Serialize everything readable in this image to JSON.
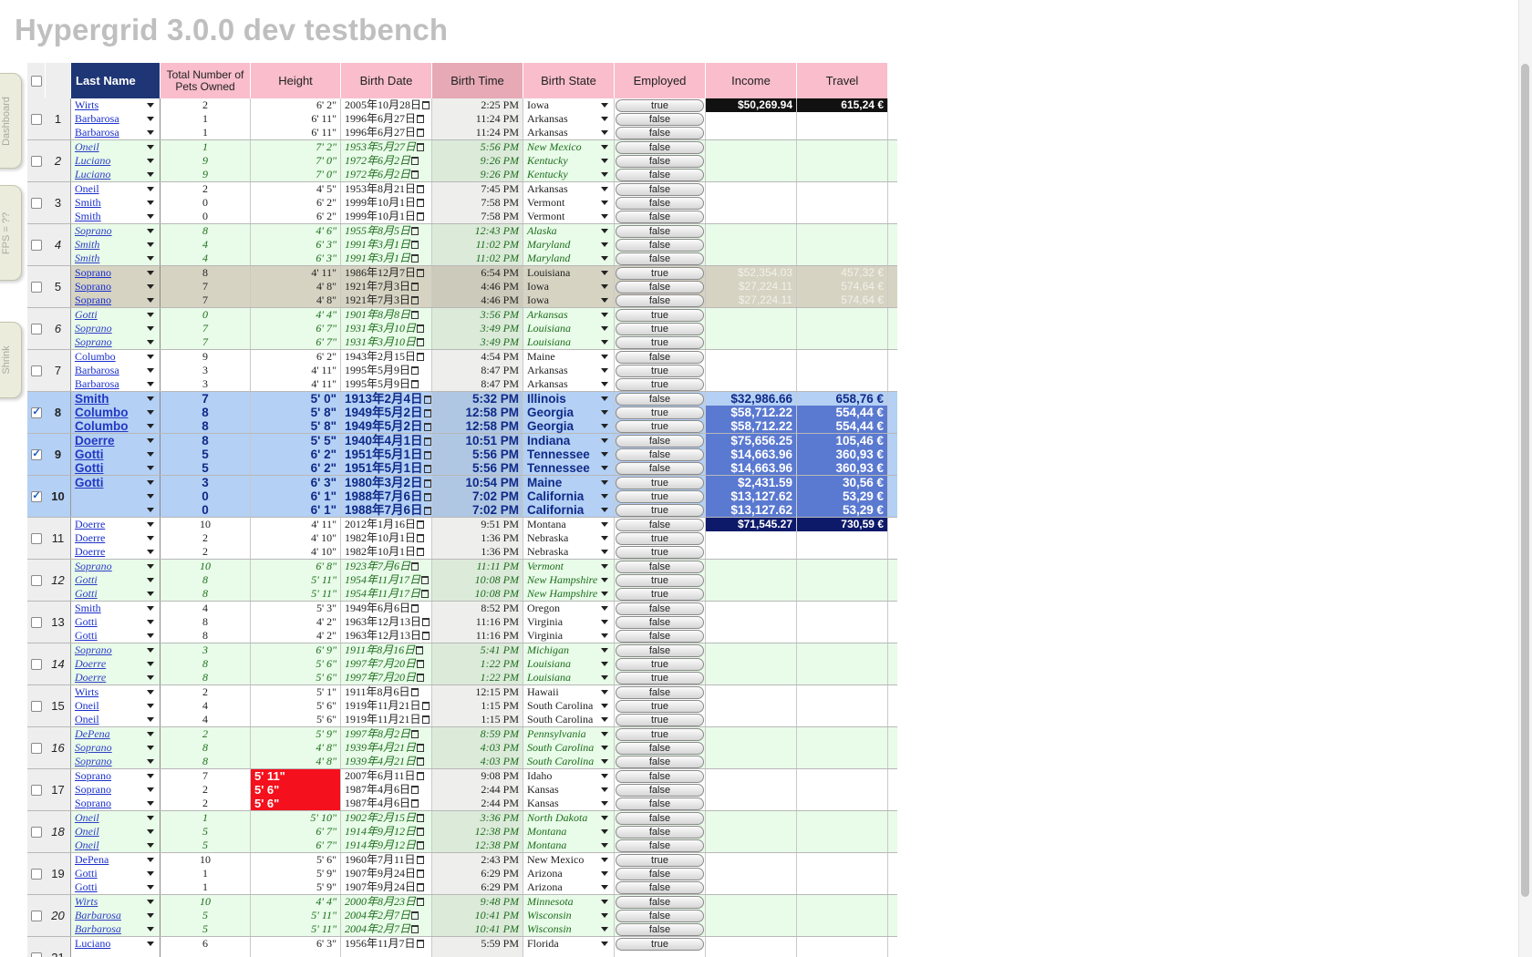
{
  "page_title": "Hypergrid 3.0.0 dev testbench",
  "side_tabs": {
    "dashboard": "Dashboard",
    "fps": "FPS = ??",
    "shrink": "Shrink"
  },
  "columns": [
    "Last Name",
    "Total Number of Pets Owned",
    "Height",
    "Birth Date",
    "Birth Time",
    "Birth State",
    "Employed",
    "Income",
    "Travel"
  ],
  "groups": [
    {
      "num": "",
      "checked": false,
      "style": "odd",
      "rows": [
        {
          "last": "Wirts",
          "pets": "2",
          "height": "6' 2\"",
          "bdate": "2005年10月28日",
          "btime": "2:25 PM",
          "state": "Iowa",
          "emp": "true",
          "income": "$50,269.94",
          "travel": "615,24 €"
        },
        {
          "last": "Barbarosa",
          "pets": "1",
          "height": "6' 11\"",
          "bdate": "1996年6月27日",
          "btime": "11:24 PM",
          "state": "Arkansas",
          "emp": "false",
          "income": "",
          "travel": ""
        },
        {
          "last": "Barbarosa",
          "pets": "1",
          "height": "6' 11\"",
          "bdate": "1996年6月27日",
          "btime": "11:24 PM",
          "state": "Arkansas",
          "emp": "false",
          "income": "",
          "travel": ""
        }
      ]
    },
    {
      "num": "1",
      "checked": false,
      "style": "odd",
      "rows": []
    },
    {
      "num": "2",
      "checked": false,
      "style": "even",
      "rows": [
        {
          "last": "Oneil",
          "pets": "1",
          "height": "7' 2\"",
          "bdate": "1953年5月27日",
          "btime": "5:56 PM",
          "state": "New Mexico",
          "emp": "false",
          "income": "",
          "travel": ""
        },
        {
          "last": "Luciano",
          "pets": "9",
          "height": "7' 0\"",
          "bdate": "1972年6月2日",
          "btime": "9:26 PM",
          "state": "Kentucky",
          "emp": "false",
          "income": "",
          "travel": ""
        },
        {
          "last": "Luciano",
          "pets": "9",
          "height": "7' 0\"",
          "bdate": "1972年6月2日",
          "btime": "9:26 PM",
          "state": "Kentucky",
          "emp": "false",
          "income": "",
          "travel": ""
        }
      ]
    },
    {
      "num": "3",
      "checked": false,
      "style": "odd",
      "rows": [
        {
          "last": "Oneil",
          "pets": "2",
          "height": "4' 5\"",
          "bdate": "1953年8月21日",
          "btime": "7:45 PM",
          "state": "Arkansas",
          "emp": "false",
          "income": "",
          "travel": ""
        },
        {
          "last": "Smith",
          "pets": "0",
          "height": "6' 2\"",
          "bdate": "1999年10月1日",
          "btime": "7:58 PM",
          "state": "Vermont",
          "emp": "false",
          "income": "",
          "travel": ""
        },
        {
          "last": "Smith",
          "pets": "0",
          "height": "6' 2\"",
          "bdate": "1999年10月1日",
          "btime": "7:58 PM",
          "state": "Vermont",
          "emp": "false",
          "income": "",
          "travel": ""
        }
      ]
    },
    {
      "num": "4",
      "checked": false,
      "style": "even",
      "rows": [
        {
          "last": "Soprano",
          "pets": "8",
          "height": "4' 6\"",
          "bdate": "1955年8月5日",
          "btime": "12:43 PM",
          "state": "Alaska",
          "emp": "false",
          "income": "",
          "travel": ""
        },
        {
          "last": "Smith",
          "pets": "4",
          "height": "6' 3\"",
          "bdate": "1991年3月1日",
          "btime": "11:02 PM",
          "state": "Maryland",
          "emp": "false",
          "income": "",
          "travel": ""
        },
        {
          "last": "Smith",
          "pets": "4",
          "height": "6' 3\"",
          "bdate": "1991年3月1日",
          "btime": "11:02 PM",
          "state": "Maryland",
          "emp": "false",
          "income": "",
          "travel": ""
        }
      ]
    },
    {
      "num": "5",
      "checked": false,
      "style": "hover",
      "rows": [
        {
          "last": "Soprano",
          "pets": "8",
          "height": "4' 11\"",
          "bdate": "1986年12月7日",
          "btime": "6:54 PM",
          "state": "Louisiana",
          "emp": "true",
          "income": "$52,354.03",
          "travel": "457,32 €"
        },
        {
          "last": "Soprano",
          "pets": "7",
          "height": "4' 8\"",
          "bdate": "1921年7月3日",
          "btime": "4:46 PM",
          "state": "Iowa",
          "emp": "false",
          "income": "$27,224.11",
          "travel": "574,64 €"
        },
        {
          "last": "Soprano",
          "pets": "7",
          "height": "4' 8\"",
          "bdate": "1921年7月3日",
          "btime": "4:46 PM",
          "state": "Iowa",
          "emp": "false",
          "income": "$27,224.11",
          "travel": "574,64 €"
        }
      ]
    },
    {
      "num": "6",
      "checked": false,
      "style": "even",
      "rows": [
        {
          "last": "Gotti",
          "pets": "0",
          "height": "4' 4\"",
          "bdate": "1901年8月8日",
          "btime": "3:56 PM",
          "state": "Arkansas",
          "emp": "true",
          "income": "",
          "travel": ""
        },
        {
          "last": "Soprano",
          "pets": "7",
          "height": "6' 7\"",
          "bdate": "1931年3月10日",
          "btime": "3:49 PM",
          "state": "Louisiana",
          "emp": "true",
          "income": "",
          "travel": ""
        },
        {
          "last": "Soprano",
          "pets": "7",
          "height": "6' 7\"",
          "bdate": "1931年3月10日",
          "btime": "3:49 PM",
          "state": "Louisiana",
          "emp": "true",
          "income": "",
          "travel": ""
        }
      ]
    },
    {
      "num": "7",
      "checked": false,
      "style": "odd",
      "rows": [
        {
          "last": "Columbo",
          "pets": "9",
          "height": "6' 2\"",
          "bdate": "1943年2月15日",
          "btime": "4:54 PM",
          "state": "Maine",
          "emp": "false",
          "income": "",
          "travel": ""
        },
        {
          "last": "Barbarosa",
          "pets": "3",
          "height": "4' 11\"",
          "bdate": "1995年5月9日",
          "btime": "8:47 PM",
          "state": "Arkansas",
          "emp": "true",
          "income": "",
          "travel": ""
        },
        {
          "last": "Barbarosa",
          "pets": "3",
          "height": "4' 11\"",
          "bdate": "1995年5月9日",
          "btime": "8:47 PM",
          "state": "Arkansas",
          "emp": "true",
          "income": "",
          "travel": ""
        }
      ]
    },
    {
      "num": "8",
      "checked": true,
      "style": "sel",
      "rows": [
        {
          "last": "Smith",
          "pets": "7",
          "height": "5' 0\"",
          "bdate": "1913年2月4日",
          "btime": "5:32 PM",
          "state": "Illinois",
          "emp": "false",
          "income": "$32,986.66",
          "travel": "658,76 €"
        },
        {
          "last": "Columbo",
          "pets": "8",
          "height": "5' 8\"",
          "bdate": "1949年5月2日",
          "btime": "12:58 PM",
          "state": "Georgia",
          "emp": "true",
          "income": "$58,712.22",
          "travel": "554,44 €"
        },
        {
          "last": "Columbo",
          "pets": "8",
          "height": "5' 8\"",
          "bdate": "1949年5月2日",
          "btime": "12:58 PM",
          "state": "Georgia",
          "emp": "true",
          "income": "$58,712.22",
          "travel": "554,44 €"
        }
      ]
    },
    {
      "num": "9",
      "checked": true,
      "style": "sel",
      "rows": [
        {
          "last": "Doerre",
          "pets": "8",
          "height": "5' 5\"",
          "bdate": "1940年4月1日",
          "btime": "10:51 PM",
          "state": "Indiana",
          "emp": "false",
          "income": "$75,656.25",
          "travel": "105,46 €"
        },
        {
          "last": "Gotti",
          "pets": "5",
          "height": "6' 2\"",
          "bdate": "1951年5月1日",
          "btime": "5:56 PM",
          "state": "Tennessee",
          "emp": "false",
          "income": "$14,663.96",
          "travel": "360,93 €"
        },
        {
          "last": "Gotti",
          "pets": "5",
          "height": "6' 2\"",
          "bdate": "1951年5月1日",
          "btime": "5:56 PM",
          "state": "Tennessee",
          "emp": "false",
          "income": "$14,663.96",
          "travel": "360,93 €"
        }
      ]
    },
    {
      "num": "10",
      "checked": true,
      "style": "sel",
      "rows": [
        {
          "last": "Gotti",
          "pets": "3",
          "height": "6' 3\"",
          "bdate": "1980年3月2日",
          "btime": "10:54 PM",
          "state": "Maine",
          "emp": "true",
          "income": "$2,431.59",
          "travel": "30,56 €"
        },
        {
          "last": "",
          "pets": "0",
          "height": "6' 1\"",
          "bdate": "1988年7月6日",
          "btime": "7:02 PM",
          "state": "California",
          "emp": "true",
          "income": "$13,127.62",
          "travel": "53,29 €"
        },
        {
          "last": "",
          "pets": "0",
          "height": "6' 1\"",
          "bdate": "1988年7月6日",
          "btime": "7:02 PM",
          "state": "California",
          "emp": "true",
          "income": "$13,127.62",
          "travel": "53,29 €"
        }
      ]
    },
    {
      "num": "11",
      "checked": false,
      "style": "odd",
      "rows": [
        {
          "last": "Doerre",
          "pets": "10",
          "height": "4' 11\"",
          "bdate": "2012年1月16日",
          "btime": "9:51 PM",
          "state": "Montana",
          "emp": "false",
          "income": "$71,545.27",
          "travel": "730,59 €"
        },
        {
          "last": "Doerre",
          "pets": "2",
          "height": "4' 10\"",
          "bdate": "1982年10月1日",
          "btime": "1:36 PM",
          "state": "Nebraska",
          "emp": "true",
          "income": "",
          "travel": ""
        },
        {
          "last": "Doerre",
          "pets": "2",
          "height": "4' 10\"",
          "bdate": "1982年10月1日",
          "btime": "1:36 PM",
          "state": "Nebraska",
          "emp": "true",
          "income": "",
          "travel": ""
        }
      ]
    },
    {
      "num": "12",
      "checked": false,
      "style": "even",
      "rows": [
        {
          "last": "Soprano",
          "pets": "10",
          "height": "6' 8\"",
          "bdate": "1923年7月6日",
          "btime": "11:11 PM",
          "state": "Vermont",
          "emp": "false",
          "income": "",
          "travel": ""
        },
        {
          "last": "Gotti",
          "pets": "8",
          "height": "5' 11\"",
          "bdate": "1954年11月17日",
          "btime": "10:08 PM",
          "state": "New Hampshire",
          "emp": "true",
          "income": "",
          "travel": ""
        },
        {
          "last": "Gotti",
          "pets": "8",
          "height": "5' 11\"",
          "bdate": "1954年11月17日",
          "btime": "10:08 PM",
          "state": "New Hampshire",
          "emp": "true",
          "income": "",
          "travel": ""
        }
      ]
    },
    {
      "num": "13",
      "checked": false,
      "style": "odd",
      "rows": [
        {
          "last": "Smith",
          "pets": "4",
          "height": "5' 3\"",
          "bdate": "1949年6月6日",
          "btime": "8:52 PM",
          "state": "Oregon",
          "emp": "false",
          "income": "",
          "travel": ""
        },
        {
          "last": "Gotti",
          "pets": "8",
          "height": "4' 2\"",
          "bdate": "1963年12月13日",
          "btime": "11:16 PM",
          "state": "Virginia",
          "emp": "false",
          "income": "",
          "travel": ""
        },
        {
          "last": "Gotti",
          "pets": "8",
          "height": "4' 2\"",
          "bdate": "1963年12月13日",
          "btime": "11:16 PM",
          "state": "Virginia",
          "emp": "false",
          "income": "",
          "travel": ""
        }
      ]
    },
    {
      "num": "14",
      "checked": false,
      "style": "even",
      "rows": [
        {
          "last": "Soprano",
          "pets": "3",
          "height": "6' 9\"",
          "bdate": "1911年8月16日",
          "btime": "5:41 PM",
          "state": "Michigan",
          "emp": "false",
          "income": "",
          "travel": ""
        },
        {
          "last": "Doerre",
          "pets": "8",
          "height": "5' 6\"",
          "bdate": "1997年7月20日",
          "btime": "1:22 PM",
          "state": "Louisiana",
          "emp": "true",
          "income": "",
          "travel": ""
        },
        {
          "last": "Doerre",
          "pets": "8",
          "height": "5' 6\"",
          "bdate": "1997年7月20日",
          "btime": "1:22 PM",
          "state": "Louisiana",
          "emp": "true",
          "income": "",
          "travel": ""
        }
      ]
    },
    {
      "num": "15",
      "checked": false,
      "style": "odd",
      "rows": [
        {
          "last": "Wirts",
          "pets": "2",
          "height": "5' 1\"",
          "bdate": "1911年8月6日",
          "btime": "12:15 PM",
          "state": "Hawaii",
          "emp": "false",
          "income": "",
          "travel": ""
        },
        {
          "last": "Oneil",
          "pets": "4",
          "height": "5' 6\"",
          "bdate": "1919年11月21日",
          "btime": "1:15 PM",
          "state": "South Carolina",
          "emp": "true",
          "income": "",
          "travel": ""
        },
        {
          "last": "Oneil",
          "pets": "4",
          "height": "5' 6\"",
          "bdate": "1919年11月21日",
          "btime": "1:15 PM",
          "state": "South Carolina",
          "emp": "true",
          "income": "",
          "travel": ""
        }
      ]
    },
    {
      "num": "16",
      "checked": false,
      "style": "even",
      "rows": [
        {
          "last": "DePena",
          "pets": "2",
          "height": "5' 9\"",
          "bdate": "1997年8月2日",
          "btime": "8:59 PM",
          "state": "Pennsylvania",
          "emp": "true",
          "income": "",
          "travel": ""
        },
        {
          "last": "Soprano",
          "pets": "8",
          "height": "4' 8\"",
          "bdate": "1939年4月21日",
          "btime": "4:03 PM",
          "state": "South Carolina",
          "emp": "false",
          "income": "",
          "travel": ""
        },
        {
          "last": "Soprano",
          "pets": "8",
          "height": "4' 8\"",
          "bdate": "1939年4月21日",
          "btime": "4:03 PM",
          "state": "South Carolina",
          "emp": "false",
          "income": "",
          "travel": ""
        }
      ]
    },
    {
      "num": "17",
      "checked": false,
      "style": "odd",
      "alert": true,
      "rows": [
        {
          "last": "Soprano",
          "pets": "7",
          "height": "5' 11\"",
          "bdate": "2007年6月11日",
          "btime": "9:08 PM",
          "state": "Idaho",
          "emp": "false",
          "income": "",
          "travel": ""
        },
        {
          "last": "Soprano",
          "pets": "2",
          "height": "5' 6\"",
          "bdate": "1987年4月6日",
          "btime": "2:44 PM",
          "state": "Kansas",
          "emp": "false",
          "income": "",
          "travel": ""
        },
        {
          "last": "Soprano",
          "pets": "2",
          "height": "5' 6\"",
          "bdate": "1987年4月6日",
          "btime": "2:44 PM",
          "state": "Kansas",
          "emp": "false",
          "income": "",
          "travel": ""
        }
      ]
    },
    {
      "num": "18",
      "checked": false,
      "style": "even",
      "rows": [
        {
          "last": "Oneil",
          "pets": "1",
          "height": "5' 10\"",
          "bdate": "1902年2月15日",
          "btime": "3:36 PM",
          "state": "North Dakota",
          "emp": "false",
          "income": "",
          "travel": ""
        },
        {
          "last": "Oneil",
          "pets": "5",
          "height": "6' 7\"",
          "bdate": "1914年9月12日",
          "btime": "12:38 PM",
          "state": "Montana",
          "emp": "false",
          "income": "",
          "travel": ""
        },
        {
          "last": "Oneil",
          "pets": "5",
          "height": "6' 7\"",
          "bdate": "1914年9月12日",
          "btime": "12:38 PM",
          "state": "Montana",
          "emp": "false",
          "income": "",
          "travel": ""
        }
      ]
    },
    {
      "num": "19",
      "checked": false,
      "style": "odd",
      "rows": [
        {
          "last": "DePena",
          "pets": "10",
          "height": "5' 6\"",
          "bdate": "1960年7月11日",
          "btime": "2:43 PM",
          "state": "New Mexico",
          "emp": "true",
          "income": "",
          "travel": ""
        },
        {
          "last": "Gotti",
          "pets": "1",
          "height": "5' 9\"",
          "bdate": "1907年9月24日",
          "btime": "6:29 PM",
          "state": "Arizona",
          "emp": "false",
          "income": "",
          "travel": ""
        },
        {
          "last": "Gotti",
          "pets": "1",
          "height": "5' 9\"",
          "bdate": "1907年9月24日",
          "btime": "6:29 PM",
          "state": "Arizona",
          "emp": "false",
          "income": "",
          "travel": ""
        }
      ]
    },
    {
      "num": "20",
      "checked": false,
      "style": "even",
      "rows": [
        {
          "last": "Wirts",
          "pets": "10",
          "height": "4' 4\"",
          "bdate": "2000年8月23日",
          "btime": "9:48 PM",
          "state": "Minnesota",
          "emp": "false",
          "income": "",
          "travel": ""
        },
        {
          "last": "Barbarosa",
          "pets": "5",
          "height": "5' 11\"",
          "bdate": "2004年2月7日",
          "btime": "10:41 PM",
          "state": "Wisconsin",
          "emp": "false",
          "income": "",
          "travel": ""
        },
        {
          "last": "Barbarosa",
          "pets": "5",
          "height": "5' 11\"",
          "bdate": "2004年2月7日",
          "btime": "10:41 PM",
          "state": "Wisconsin",
          "emp": "false",
          "income": "",
          "travel": ""
        }
      ]
    },
    {
      "num": "21",
      "checked": false,
      "style": "odd",
      "rows": [
        {
          "last": "Luciano",
          "pets": "6",
          "height": "6' 3\"",
          "bdate": "1956年11月7日",
          "btime": "5:59 PM",
          "state": "Florida",
          "emp": "true",
          "income": "",
          "travel": ""
        },
        {
          "last": "",
          "pets": "",
          "height": "",
          "bdate": "",
          "btime": "",
          "state": "",
          "emp": "",
          "income": "",
          "travel": ""
        },
        {
          "last": "",
          "pets": "",
          "height": "",
          "bdate": "",
          "btime": "",
          "state": "",
          "emp": "",
          "income": "",
          "travel": ""
        }
      ]
    }
  ]
}
